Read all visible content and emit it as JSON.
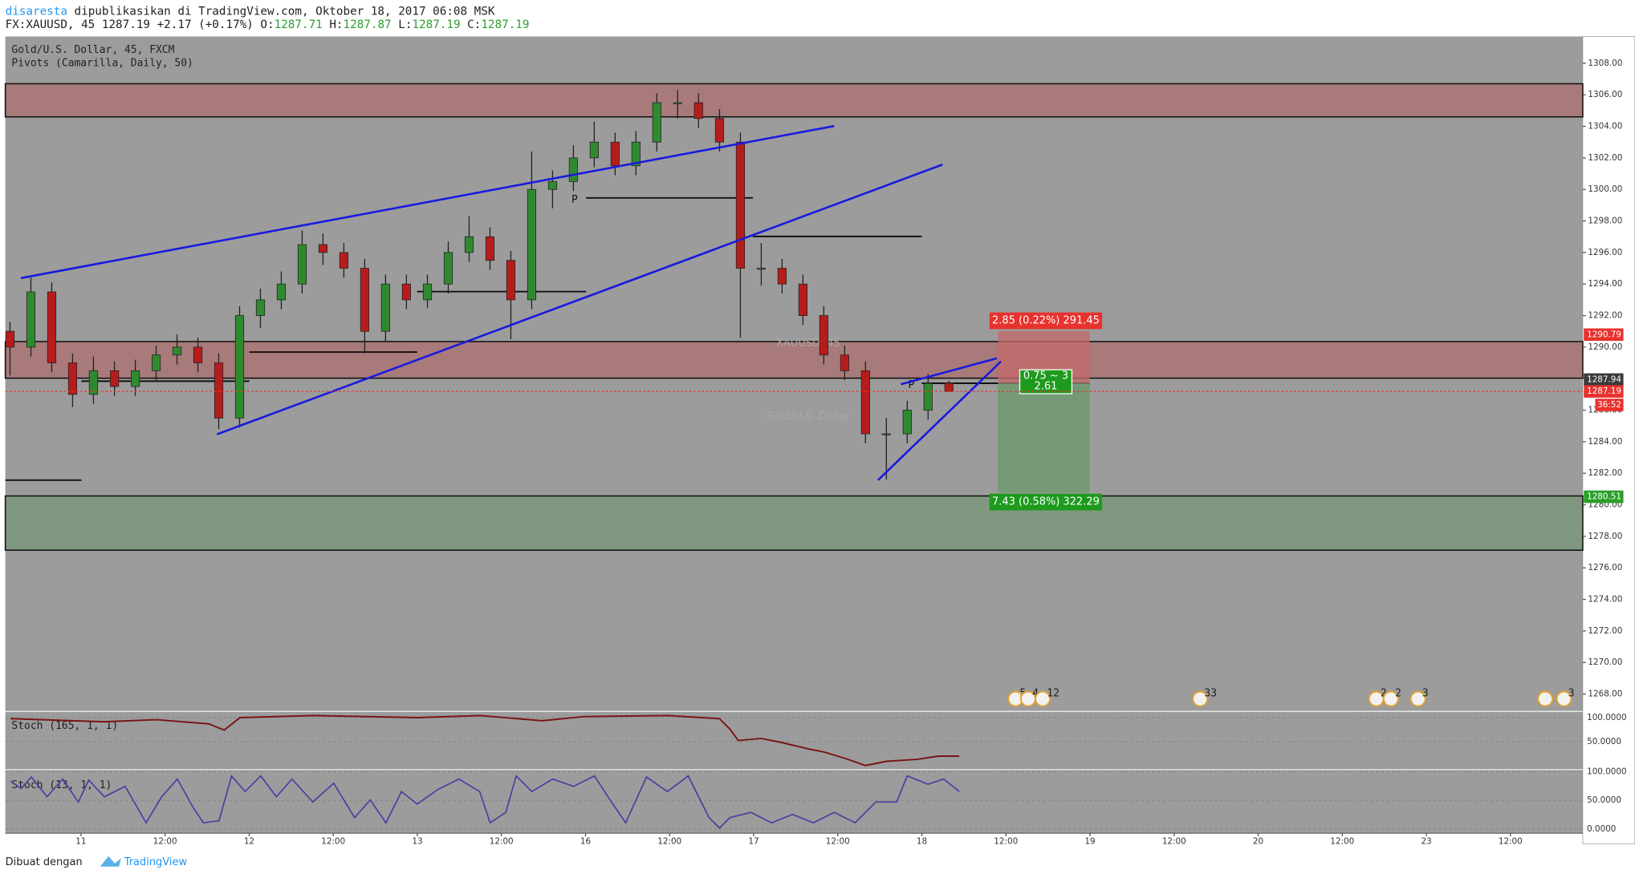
{
  "header": {
    "user": "disaresta",
    "published": "dipublikasikan di TradingView.com, Oktober 18, 2017 06:08 MSK",
    "symbol": "FX:XAUUSD, 45",
    "last": "1287.19",
    "change": "+2.17 (+0.17%)",
    "ohlc": [
      {
        "key": "O:",
        "value": "1287.71"
      },
      {
        "key": "H:",
        "value": "1287.87"
      },
      {
        "key": "L:",
        "value": "1287.19"
      },
      {
        "key": "C:",
        "value": "1287.19"
      }
    ]
  },
  "chart_data": {
    "type": "candlestick",
    "legend": [
      "Gold/U.S. Dollar, 45, FXCM",
      "Pivots (Camarilla, Daily, 50)"
    ],
    "watermark": [
      "XAUUSD, 45",
      "Gold/U.S. Dollar"
    ],
    "x": [
      -0.422,
      -0.298,
      -0.174,
      -0.05,
      0.074,
      0.199,
      0.323,
      0.447,
      0.571,
      0.695,
      0.819,
      0.943,
      1.067,
      1.191,
      1.315,
      1.439,
      1.563,
      1.687,
      1.811,
      1.935,
      2.06,
      2.184,
      2.308,
      2.432,
      2.556,
      2.68,
      2.804,
      2.928,
      3.052,
      3.176,
      3.3,
      3.424,
      3.548,
      3.672,
      3.797,
      3.921,
      4.045,
      4.169,
      4.293,
      4.417,
      4.541,
      4.665,
      4.789,
      4.913,
      5.037,
      5.161
    ],
    "open": [
      1291,
      1290,
      1293.5,
      1289,
      1287,
      1288.5,
      1287.5,
      1288.5,
      1289.5,
      1290,
      1289,
      1285.5,
      1292,
      1293,
      1294,
      1296.5,
      1296,
      1295,
      1291,
      1294,
      1293,
      1294,
      1296,
      1297,
      1295.5,
      1293,
      1300,
      1300.5,
      1302,
      1303,
      1301.5,
      1303,
      1305.5,
      1305.5,
      1304.5,
      1303,
      1295,
      1295,
      1294,
      1292,
      1289.5,
      1288.5,
      1284.5,
      1284.5,
      1286,
      1287.71
    ],
    "high": [
      1291.6,
      1294.4,
      1294.1,
      1289.6,
      1289.4,
      1289.1,
      1289.2,
      1290.1,
      1290.8,
      1290.6,
      1289.6,
      1292.6,
      1293.7,
      1294.8,
      1297.4,
      1297.2,
      1296.6,
      1295.6,
      1294.6,
      1294.6,
      1294.6,
      1296.7,
      1298.3,
      1297.6,
      1296.1,
      1302.4,
      1301.2,
      1302.8,
      1304.3,
      1303.6,
      1303.7,
      1306.1,
      1306.3,
      1306.1,
      1305.1,
      1303.6,
      1296.6,
      1295.6,
      1294.6,
      1292.6,
      1290.1,
      1289.1,
      1285.5,
      1286.6,
      1288.3,
      1287.87
    ],
    "low": [
      1288.2,
      1289.4,
      1288.4,
      1286.2,
      1286.4,
      1286.9,
      1286.9,
      1287.9,
      1288.9,
      1288.4,
      1284.8,
      1284.9,
      1291.2,
      1292.4,
      1293.4,
      1295.2,
      1294.4,
      1289.6,
      1290.4,
      1292.4,
      1292.5,
      1293.4,
      1295.4,
      1294.9,
      1290.5,
      1292.4,
      1298.8,
      1299.9,
      1301.4,
      1300.9,
      1300.9,
      1302.4,
      1304.5,
      1303.9,
      1302.4,
      1290.6,
      1293.9,
      1293.4,
      1291.4,
      1288.9,
      1287.9,
      1283.9,
      1281.6,
      1283.9,
      1285.4,
      1287.19
    ],
    "close": [
      1290,
      1293.5,
      1289,
      1287,
      1288.5,
      1287.5,
      1288.5,
      1289.5,
      1290,
      1289,
      1285.5,
      1292,
      1293,
      1294,
      1296.5,
      1296,
      1295,
      1291,
      1294,
      1293,
      1294,
      1296,
      1297,
      1295.5,
      1293,
      1300,
      1300.5,
      1302,
      1303,
      1301.5,
      1303,
      1305.5,
      1305.5,
      1304.5,
      1303,
      1295,
      1295,
      1294,
      1292,
      1289.5,
      1288.5,
      1284.5,
      1284.5,
      1286,
      1287.7,
      1287.19
    ],
    "up_color": "#2f8a2f",
    "down_color": "#b71c1c",
    "xlim": [
      -0.45,
      8.93
    ],
    "xticks": [
      {
        "value": 0,
        "label": "11"
      },
      {
        "value": 0.5,
        "label": "12:00"
      },
      {
        "value": 1,
        "label": "12"
      },
      {
        "value": 1.5,
        "label": "12:00"
      },
      {
        "value": 2,
        "label": "13"
      },
      {
        "value": 2.5,
        "label": "12:00"
      },
      {
        "value": 3,
        "label": "16"
      },
      {
        "value": 3.5,
        "label": "12:00"
      },
      {
        "value": 4,
        "label": "17"
      },
      {
        "value": 4.5,
        "label": "12:00"
      },
      {
        "value": 5,
        "label": "18"
      },
      {
        "value": 5.5,
        "label": "12:00"
      },
      {
        "value": 6,
        "label": "19"
      },
      {
        "value": 6.5,
        "label": "12:00"
      },
      {
        "value": 7,
        "label": "20"
      },
      {
        "value": 7.5,
        "label": "12:00"
      },
      {
        "value": 8,
        "label": "23"
      },
      {
        "value": 8.5,
        "label": "12:00"
      }
    ],
    "ylim": [
      1266.9,
      1309.7
    ],
    "yticks": [
      {
        "value": 1308,
        "label": "1308.00"
      },
      {
        "value": 1306,
        "label": "1306.00"
      },
      {
        "value": 1304,
        "label": "1304.00"
      },
      {
        "value": 1302,
        "label": "1302.00"
      },
      {
        "value": 1300,
        "label": "1300.00"
      },
      {
        "value": 1298,
        "label": "1298.00"
      },
      {
        "value": 1296,
        "label": "1296.00"
      },
      {
        "value": 1294,
        "label": "1294.00"
      },
      {
        "value": 1292,
        "label": "1292.00"
      },
      {
        "value": 1290,
        "label": "1290.00"
      },
      {
        "value": 1288,
        "label": "1288.00"
      },
      {
        "value": 1286,
        "label": "1286.00"
      },
      {
        "value": 1284,
        "label": "1284.00"
      },
      {
        "value": 1282,
        "label": "1282.00"
      },
      {
        "value": 1280,
        "label": "1280.00"
      },
      {
        "value": 1278,
        "label": "1278.00"
      },
      {
        "value": 1276,
        "label": "1276.00"
      },
      {
        "value": 1274,
        "label": "1274.00"
      },
      {
        "value": 1272,
        "label": "1272.00"
      },
      {
        "value": 1270,
        "label": "1270.00"
      },
      {
        "value": 1268,
        "label": "1268.00"
      }
    ],
    "grid": false,
    "zones": [
      {
        "low": 1304.6,
        "high": 1306.7,
        "color": "#a87a7a"
      },
      {
        "low": 1288.03,
        "high": 1290.35,
        "color": "#a87a7a"
      },
      {
        "low": 1277.12,
        "high": 1280.56,
        "color": "#7f987f"
      }
    ],
    "price_labels": [
      {
        "value": 1290.79,
        "color": "#e8322e"
      },
      {
        "value": 1287.94,
        "color": "#3b3b3b"
      },
      {
        "value": 1287.19,
        "color": "#e8322e"
      },
      {
        "value": 1280.51,
        "color": "#2aa02a"
      }
    ],
    "countdown": "36:52",
    "pivot_label": "P",
    "position": {
      "target": "2.85 (0.22%) 291.45",
      "ratio": "0.75 ~ 3",
      "qty": "2.61",
      "stop": "7.43 (0.58%) 322.29"
    },
    "events": [
      "5",
      "4",
      "12",
      "33",
      "2",
      "2",
      "3",
      "3"
    ],
    "stochs": [
      {
        "title": "Stoch (165, 1, 1)",
        "yticks": [
          {
            "value": 100,
            "label": "100.0000"
          },
          {
            "value": 50,
            "label": "50.0000"
          }
        ]
      },
      {
        "title": "Stoch (13, 1, 1)",
        "yticks": [
          {
            "value": 100,
            "label": "100.0000"
          },
          {
            "value": 50,
            "label": "50.0000"
          },
          {
            "value": 0,
            "label": "0.0000"
          }
        ]
      }
    ]
  },
  "footer": {
    "made_with": "Dibuat dengan",
    "brand": "TradingView"
  }
}
